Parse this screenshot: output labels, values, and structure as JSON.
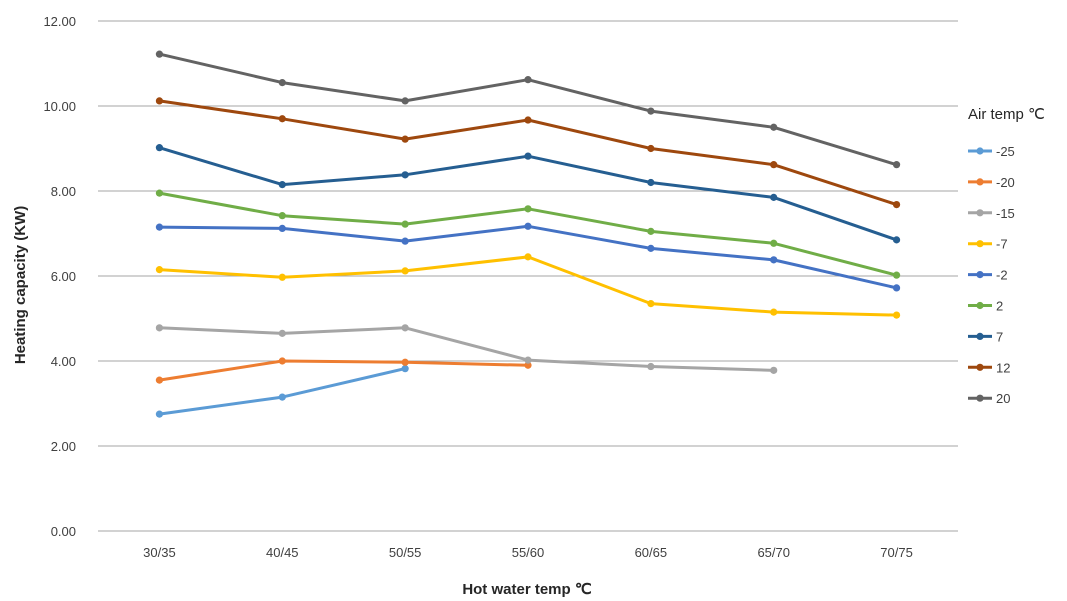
{
  "chart_data": {
    "type": "line",
    "categories": [
      "30/35",
      "40/45",
      "50/55",
      "55/60",
      "60/65",
      "65/70",
      "70/75"
    ],
    "xlabel": "Hot water temp ℃",
    "ylabel": "Heating capacity (KW)",
    "ylim": [
      0,
      12
    ],
    "yticks": [
      "0.00",
      "2.00",
      "4.00",
      "6.00",
      "8.00",
      "10.00",
      "12.00"
    ],
    "grid": true,
    "legend": {
      "title": "Air temp ℃",
      "placement": "right"
    },
    "series": [
      {
        "name": "-25",
        "color": "#5b9bd5",
        "values": [
          2.75,
          3.15,
          3.82,
          null,
          null,
          null,
          null
        ]
      },
      {
        "name": "-20",
        "color": "#ed7d31",
        "values": [
          3.55,
          4.0,
          3.97,
          3.9,
          null,
          null,
          null
        ]
      },
      {
        "name": "-15",
        "color": "#a5a5a5",
        "values": [
          4.78,
          4.65,
          4.78,
          4.02,
          3.87,
          3.78,
          null
        ]
      },
      {
        "name": "-7",
        "color": "#ffc000",
        "values": [
          6.15,
          5.97,
          6.12,
          6.45,
          5.35,
          5.15,
          5.08
        ]
      },
      {
        "name": "-2",
        "color": "#4472c4",
        "values": [
          7.15,
          7.12,
          6.82,
          7.17,
          6.65,
          6.38,
          5.72
        ]
      },
      {
        "name": "2",
        "color": "#70ad47",
        "values": [
          7.95,
          7.42,
          7.22,
          7.58,
          7.05,
          6.77,
          6.02
        ]
      },
      {
        "name": "7",
        "color": "#255e91",
        "values": [
          9.02,
          8.15,
          8.38,
          8.82,
          8.2,
          7.85,
          6.85
        ]
      },
      {
        "name": "12",
        "color": "#9e480e",
        "values": [
          10.12,
          9.7,
          9.22,
          9.67,
          9.0,
          8.62,
          7.68
        ]
      },
      {
        "name": "20",
        "color": "#636363",
        "values": [
          11.22,
          10.55,
          10.12,
          10.62,
          9.88,
          9.5,
          8.62
        ]
      }
    ]
  }
}
